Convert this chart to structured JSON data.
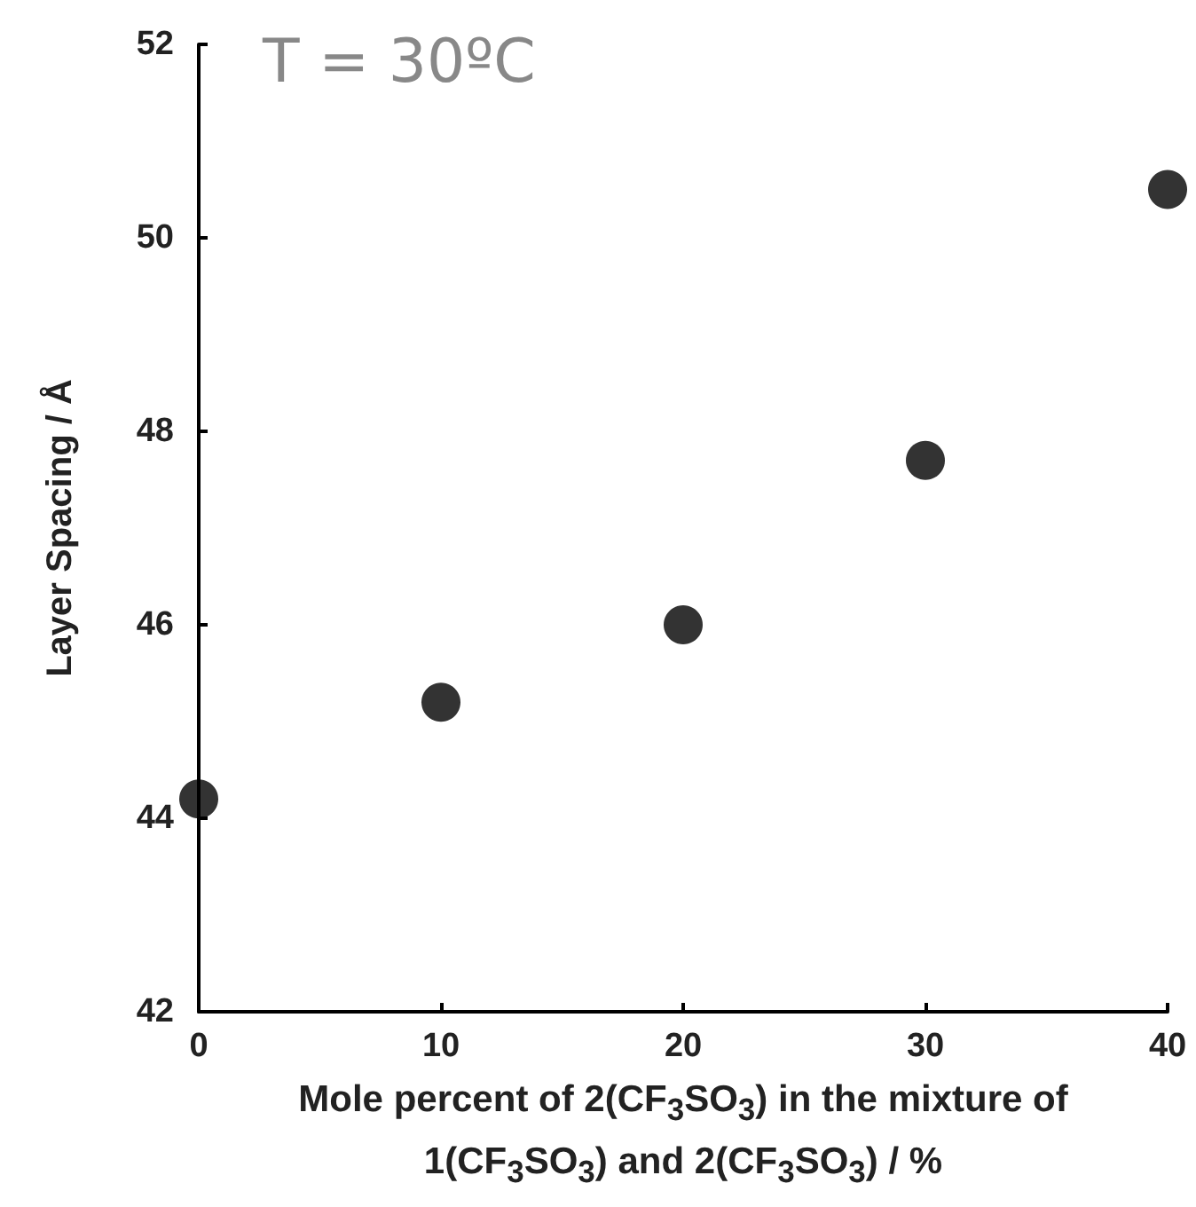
{
  "chart_data": {
    "type": "scatter",
    "xlabel": "Mole percent of 2(CF$_{3}$SO$_{3}$) in the mixture of 1(CF$_{3}$SO$_{3}$) and 2(CF$_{3}$SO$_{3}$) / %",
    "ylabel": "Layer Spacing / Å",
    "annotations": [
      "T = 30ºC"
    ],
    "x": [
      0,
      10,
      20,
      30,
      40
    ],
    "series": [
      {
        "color": "#000000",
        "values": [
          44.2,
          45.2,
          46.0,
          47.7,
          50.5
        ]
      }
    ],
    "xlim": [
      0,
      40
    ],
    "xticks": [
      0,
      10,
      20,
      30,
      40
    ],
    "ylim": [
      42,
      52
    ],
    "yticks": [
      42,
      44,
      46,
      48,
      50,
      52
    ],
    "marker": "circle"
  }
}
